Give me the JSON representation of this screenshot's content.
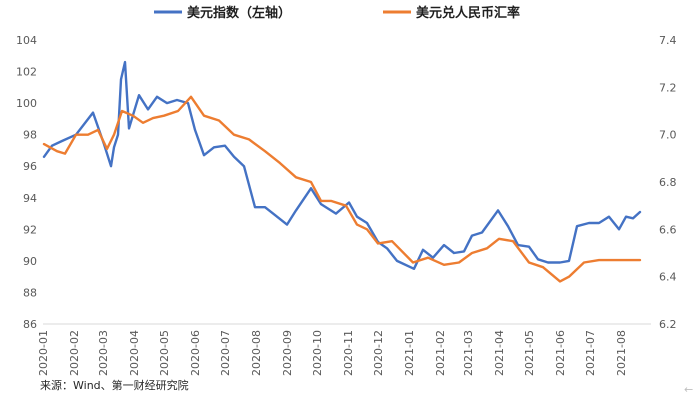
{
  "chart_data": {
    "type": "line",
    "title": "",
    "legend_position": "top",
    "grid": false,
    "x_ticks": [
      "2020-01",
      "2020-02",
      "2020-03",
      "2020-04",
      "2020-05",
      "2020-06",
      "2020-07",
      "2020-08",
      "2020-09",
      "2020-10",
      "2020-11",
      "2020-12",
      "2021-01",
      "2021-02",
      "2021-03",
      "2021-04",
      "2021-05",
      "2021-06",
      "2021-07",
      "2021-08"
    ],
    "y_left": {
      "min": 86,
      "max": 104,
      "ticks": [
        86,
        88,
        90,
        92,
        94,
        96,
        98,
        100,
        102,
        104
      ]
    },
    "y_right": {
      "min": 6.2,
      "max": 7.4,
      "ticks": [
        "6.2",
        "6.4",
        "6.6",
        "6.8",
        "7.0",
        "7.2",
        "7.4"
      ]
    },
    "series": [
      {
        "name": "美元指数（左轴）",
        "axis": "left",
        "color": "#4472C4",
        "x": [
          "2020-01-02",
          "2020-01-10",
          "2020-01-20",
          "2020-02-03",
          "2020-02-20",
          "2020-03-02",
          "2020-03-09",
          "2020-03-12",
          "2020-03-16",
          "2020-03-19",
          "2020-03-23",
          "2020-03-27",
          "2020-04-06",
          "2020-04-15",
          "2020-04-24",
          "2020-05-04",
          "2020-05-14",
          "2020-05-25",
          "2020-06-01",
          "2020-06-10",
          "2020-06-20",
          "2020-07-01",
          "2020-07-10",
          "2020-07-20",
          "2020-07-31",
          "2020-08-10",
          "2020-08-20",
          "2020-09-01",
          "2020-09-10",
          "2020-09-25",
          "2020-10-05",
          "2020-10-20",
          "2020-11-02",
          "2020-11-10",
          "2020-11-20",
          "2020-12-01",
          "2020-12-10",
          "2020-12-20",
          "2021-01-06",
          "2021-01-15",
          "2021-01-25",
          "2021-02-05",
          "2021-02-15",
          "2021-02-25",
          "2021-03-05",
          "2021-03-15",
          "2021-03-31",
          "2021-04-10",
          "2021-04-20",
          "2021-05-01",
          "2021-05-10",
          "2021-05-20",
          "2021-06-01",
          "2021-06-10",
          "2021-06-18",
          "2021-06-30",
          "2021-07-10",
          "2021-07-20",
          "2021-07-30",
          "2021-08-06",
          "2021-08-13",
          "2021-08-20"
        ],
        "values": [
          96.6,
          97.3,
          97.6,
          98.0,
          99.4,
          97.4,
          96.0,
          97.2,
          98.0,
          101.5,
          102.6,
          98.4,
          100.5,
          99.6,
          100.4,
          100.0,
          100.2,
          100.0,
          98.3,
          96.7,
          97.2,
          97.3,
          96.6,
          96.0,
          93.4,
          93.4,
          92.9,
          92.3,
          93.2,
          94.6,
          93.6,
          93.0,
          93.7,
          92.8,
          92.4,
          91.2,
          90.8,
          90.0,
          89.5,
          90.7,
          90.2,
          91.0,
          90.5,
          90.6,
          91.6,
          91.8,
          93.2,
          92.2,
          91.0,
          90.9,
          90.1,
          89.9,
          89.9,
          90.0,
          92.2,
          92.4,
          92.4,
          92.8,
          92.0,
          92.8,
          92.7,
          93.1
        ]
      },
      {
        "name": "美元兑人民币汇率",
        "axis": "right",
        "color": "#ED7D31",
        "x": [
          "2020-01-02",
          "2020-01-15",
          "2020-01-23",
          "2020-02-03",
          "2020-02-15",
          "2020-02-25",
          "2020-03-05",
          "2020-03-12",
          "2020-03-20",
          "2020-03-31",
          "2020-04-10",
          "2020-04-20",
          "2020-05-01",
          "2020-05-15",
          "2020-05-28",
          "2020-06-10",
          "2020-06-25",
          "2020-07-10",
          "2020-07-25",
          "2020-08-10",
          "2020-08-25",
          "2020-09-10",
          "2020-09-25",
          "2020-10-05",
          "2020-10-15",
          "2020-10-30",
          "2020-11-10",
          "2020-11-20",
          "2020-12-01",
          "2020-12-15",
          "2021-01-05",
          "2021-01-20",
          "2021-02-05",
          "2021-02-20",
          "2021-03-05",
          "2021-03-20",
          "2021-04-01",
          "2021-04-15",
          "2021-05-01",
          "2021-05-15",
          "2021-06-01",
          "2021-06-10",
          "2021-06-25",
          "2021-07-10",
          "2021-07-25",
          "2021-08-05",
          "2021-08-20"
        ],
        "values": [
          6.96,
          6.93,
          6.92,
          7.0,
          7.0,
          7.02,
          6.94,
          7.0,
          7.1,
          7.08,
          7.05,
          7.07,
          7.08,
          7.1,
          7.16,
          7.08,
          7.06,
          7.0,
          6.98,
          6.93,
          6.88,
          6.82,
          6.8,
          6.72,
          6.72,
          6.7,
          6.62,
          6.6,
          6.54,
          6.55,
          6.46,
          6.48,
          6.45,
          6.46,
          6.5,
          6.52,
          6.56,
          6.55,
          6.46,
          6.44,
          6.38,
          6.4,
          6.46,
          6.47,
          6.47,
          6.47,
          6.47
        ]
      }
    ]
  },
  "source": "来源：Wind、第一财经研究院",
  "back_icon": "arrow-left-icon"
}
